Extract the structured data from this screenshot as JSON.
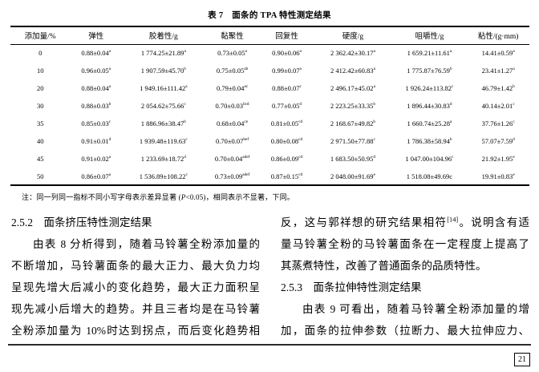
{
  "colors": {
    "page_bg": "#ffffff",
    "text": "#000000",
    "rule": "#000000"
  },
  "table": {
    "title": "表 7　面条的 TPA 特性测定结果",
    "headers": [
      "添加量/%",
      "弹性",
      "胶着性/g",
      "黏聚性",
      "回复性",
      "硬度/g",
      "咀嚼性/g",
      "粘性/(g·mm)"
    ],
    "rows": [
      {
        "amount": "0",
        "cells": [
          "0.88±0.04^a^",
          "1 774.25±21.89^a^",
          "0.73±0.05^a^",
          "0.90±0.06^a^",
          "2 362.42±30.17^a^",
          "1 659.21±11.61^a^",
          "14.41±0.59^a^"
        ]
      },
      {
        "amount": "10",
        "cells": [
          "0.96±0.05^a^",
          "1 907.59±45.70^b^",
          "0.75±0.05^ab^",
          "0.99±0.07^a^",
          "2 412.42±60.83^a^",
          "1 775.87±76.59^b^",
          "23.41±1.27^a^"
        ]
      },
      {
        "amount": "20",
        "cells": [
          "0.88±0.04^a^",
          "1 949.16±111.42^a^",
          "0.79±0.04^ac^",
          "0.88±0.07^c^",
          "2 496.17±45.02^a^",
          "1 926.24±113.82^c^",
          "46.79±1.42^b^"
        ]
      },
      {
        "amount": "30",
        "cells": [
          "0.88±0.03^b^",
          "2 054.62±75.66^c^",
          "0.70±0.03^bcd^",
          "0.77±0.05^d^",
          "2 223.25±33.35^b^",
          "1 896.44±30.83^d^",
          "40.14±2.01^c^"
        ]
      },
      {
        "amount": "35",
        "cells": [
          "0.85±0.03^c^",
          "1 886.96±38.47^b^",
          "0.68±0.04^ce^",
          "0.81±0.05^cd^",
          "2 168.67±49.82^b^",
          "1 660.74±25.28^a^",
          "37.76±1.26^c^"
        ]
      },
      {
        "amount": "40",
        "cells": [
          "0.91±0.01^d^",
          "1 939.48±119.63^c^",
          "0.70±0.07^bef^",
          "0.80±0.08^cd^",
          "2 971.50±77.88^c^",
          "1 786.38±58.94^b^",
          "57.07±7.59^d^"
        ]
      },
      {
        "amount": "45",
        "cells": [
          "0.91±0.02^a^",
          "1 233.69±18.72^d^",
          "0.70±0.04^adef^",
          "0.86±0.09^cd^",
          "1 683.50±50.95^d^",
          "1 047.00±104.96^c^",
          "21.92±1.95^e^"
        ]
      },
      {
        "amount": "50",
        "cells": [
          "0.86±0.07^a^",
          "1 536.89±108.22^c^",
          "0.73±0.09^adef^",
          "0.87±0.15^cd^",
          "2 048.00±91.69^e^",
          "1 518.08±49.69c",
          "19.91±0.83^e^"
        ]
      }
    ],
    "note": "注：同一列同一指标不同小写字母表示差异显著 (~P~<0.05)，相同表示不显著，下同。"
  },
  "sections": {
    "left": [
      {
        "type": "heading",
        "text": "2.5.2　面条挤压特性测定结果"
      },
      {
        "type": "line",
        "text": "由表 8 分析得到，随着马铃薯全粉添加量的",
        "indent": true,
        "fill": true
      },
      {
        "type": "line",
        "text": "不断增加，马铃薯面条的最大正力、最大负力均",
        "fill": true
      },
      {
        "type": "line",
        "text": "呈现先增大后减小的变化趋势，最大正力面积呈",
        "fill": true
      },
      {
        "type": "line",
        "text": "现先减小后增大的趋势。并且三者均是在马铃薯",
        "fill": true
      },
      {
        "type": "line",
        "text": "全粉添加量为 10%时达到拐点，而后变化趋势相",
        "fill": true
      }
    ],
    "right": [
      {
        "type": "line",
        "text": "反，这与郭祥想的研究结果相符^[14]^。说明含有适",
        "fill": true
      },
      {
        "type": "line",
        "text": "量马铃薯全粉的马铃薯面条在一定程度上提高了",
        "fill": true
      },
      {
        "type": "line",
        "text": "其蒸煮特性，改善了普通面条的品质特性。"
      },
      {
        "type": "heading",
        "text": "2.5.3　面条拉伸特性测定结果"
      },
      {
        "type": "line",
        "text": "由表 9 可看出，随着马铃薯全粉添加量的增",
        "indent": true,
        "fill": true
      },
      {
        "type": "line",
        "text": "加，面条的拉伸参数（拉断力、最大拉伸应力、",
        "fill": true
      }
    ]
  },
  "page_number": "21"
}
